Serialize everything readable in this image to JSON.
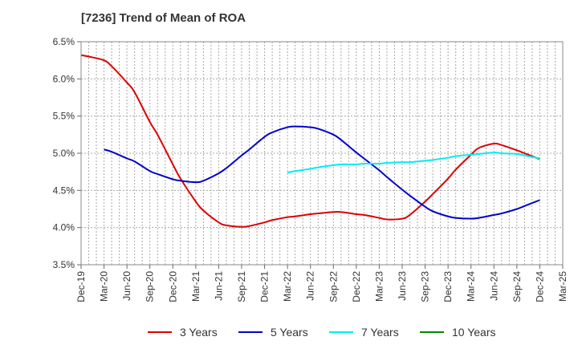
{
  "chart_data": {
    "type": "line",
    "title": "[7236]  Trend of Mean of ROA",
    "xlabel": "",
    "ylabel": "",
    "x_ticks": [
      "Dec-19",
      "Mar-20",
      "Jun-20",
      "Sep-20",
      "Dec-20",
      "Mar-21",
      "Jun-21",
      "Sep-21",
      "Dec-21",
      "Mar-22",
      "Jun-22",
      "Sep-22",
      "Dec-22",
      "Mar-23",
      "Jun-23",
      "Sep-23",
      "Dec-23",
      "Mar-24",
      "Jun-24",
      "Sep-24",
      "Dec-24",
      "Mar-25"
    ],
    "y_ticks": [
      "3.5%",
      "4.0%",
      "4.5%",
      "5.0%",
      "5.5%",
      "6.0%",
      "6.5%"
    ],
    "ylim": [
      3.5,
      6.5
    ],
    "grid": true,
    "legend_position": "bottom",
    "series": [
      {
        "name": "3 Years",
        "color": "#dd0000",
        "points": [
          [
            "Dec-19",
            6.32
          ],
          [
            "Jan-20",
            6.3
          ],
          [
            "Mar-20",
            6.25
          ],
          [
            "Apr-20",
            6.17
          ],
          [
            "Jun-20",
            5.95
          ],
          [
            "Jul-20",
            5.82
          ],
          [
            "Sep-20",
            5.42
          ],
          [
            "Oct-20",
            5.25
          ],
          [
            "Dec-20",
            4.85
          ],
          [
            "Jan-21",
            4.66
          ],
          [
            "Mar-21",
            4.35
          ],
          [
            "Apr-21",
            4.23
          ],
          [
            "Jun-21",
            4.07
          ],
          [
            "Jul-21",
            4.03
          ],
          [
            "Sep-21",
            4.01
          ],
          [
            "Oct-21",
            4.02
          ],
          [
            "Dec-21",
            4.07
          ],
          [
            "Jan-22",
            4.1
          ],
          [
            "Mar-22",
            4.14
          ],
          [
            "Apr-22",
            4.15
          ],
          [
            "Jun-22",
            4.18
          ],
          [
            "Jul-22",
            4.19
          ],
          [
            "Sep-22",
            4.21
          ],
          [
            "Oct-22",
            4.21
          ],
          [
            "Dec-22",
            4.18
          ],
          [
            "Jan-23",
            4.17
          ],
          [
            "Mar-23",
            4.13
          ],
          [
            "Apr-23",
            4.11
          ],
          [
            "Jun-23",
            4.12
          ],
          [
            "Jul-23",
            4.17
          ],
          [
            "Sep-23",
            4.35
          ],
          [
            "Oct-23",
            4.45
          ],
          [
            "Dec-23",
            4.66
          ],
          [
            "Jan-24",
            4.78
          ],
          [
            "Mar-24",
            4.98
          ],
          [
            "Apr-24",
            5.07
          ],
          [
            "Jun-24",
            5.13
          ],
          [
            "Jul-24",
            5.11
          ],
          [
            "Sep-24",
            5.04
          ],
          [
            "Oct-24",
            5.0
          ],
          [
            "Dec-24",
            4.92
          ]
        ]
      },
      {
        "name": "5 Years",
        "color": "#0000cc",
        "points": [
          [
            "Mar-20",
            5.05
          ],
          [
            "Apr-20",
            5.02
          ],
          [
            "Jun-20",
            4.93
          ],
          [
            "Jul-20",
            4.89
          ],
          [
            "Sep-20",
            4.76
          ],
          [
            "Oct-20",
            4.72
          ],
          [
            "Dec-20",
            4.65
          ],
          [
            "Jan-21",
            4.63
          ],
          [
            "Mar-21",
            4.61
          ],
          [
            "Apr-21",
            4.63
          ],
          [
            "Jun-21",
            4.73
          ],
          [
            "Jul-21",
            4.8
          ],
          [
            "Sep-21",
            4.97
          ],
          [
            "Oct-21",
            5.05
          ],
          [
            "Dec-21",
            5.22
          ],
          [
            "Jan-22",
            5.28
          ],
          [
            "Mar-22",
            5.35
          ],
          [
            "Apr-22",
            5.36
          ],
          [
            "Jun-22",
            5.35
          ],
          [
            "Jul-22",
            5.33
          ],
          [
            "Sep-22",
            5.25
          ],
          [
            "Oct-22",
            5.18
          ],
          [
            "Dec-22",
            5.01
          ],
          [
            "Jan-23",
            4.93
          ],
          [
            "Mar-23",
            4.77
          ],
          [
            "Apr-23",
            4.68
          ],
          [
            "Jun-23",
            4.51
          ],
          [
            "Jul-23",
            4.43
          ],
          [
            "Sep-23",
            4.28
          ],
          [
            "Oct-23",
            4.22
          ],
          [
            "Dec-23",
            4.15
          ],
          [
            "Jan-24",
            4.13
          ],
          [
            "Mar-24",
            4.12
          ],
          [
            "Apr-24",
            4.13
          ],
          [
            "Jun-24",
            4.17
          ],
          [
            "Jul-24",
            4.19
          ],
          [
            "Sep-24",
            4.25
          ],
          [
            "Oct-24",
            4.29
          ],
          [
            "Dec-24",
            4.37
          ]
        ]
      },
      {
        "name": "7 Years",
        "color": "#00eeee",
        "points": [
          [
            "Mar-22",
            4.74
          ],
          [
            "Apr-22",
            4.76
          ],
          [
            "Jun-22",
            4.79
          ],
          [
            "Jul-22",
            4.81
          ],
          [
            "Sep-22",
            4.84
          ],
          [
            "Oct-22",
            4.85
          ],
          [
            "Dec-22",
            4.85
          ],
          [
            "Jan-23",
            4.86
          ],
          [
            "Mar-23",
            4.86
          ],
          [
            "Apr-23",
            4.87
          ],
          [
            "Jun-23",
            4.88
          ],
          [
            "Jul-23",
            4.88
          ],
          [
            "Sep-23",
            4.9
          ],
          [
            "Oct-23",
            4.91
          ],
          [
            "Dec-23",
            4.94
          ],
          [
            "Jan-24",
            4.96
          ],
          [
            "Mar-24",
            4.98
          ],
          [
            "Apr-24",
            4.99
          ],
          [
            "Jun-24",
            5.01
          ],
          [
            "Jul-24",
            5.0
          ],
          [
            "Sep-24",
            4.99
          ],
          [
            "Oct-24",
            4.97
          ],
          [
            "Dec-24",
            4.93
          ]
        ]
      },
      {
        "name": "10 Years",
        "color": "#008800",
        "points": []
      }
    ]
  }
}
